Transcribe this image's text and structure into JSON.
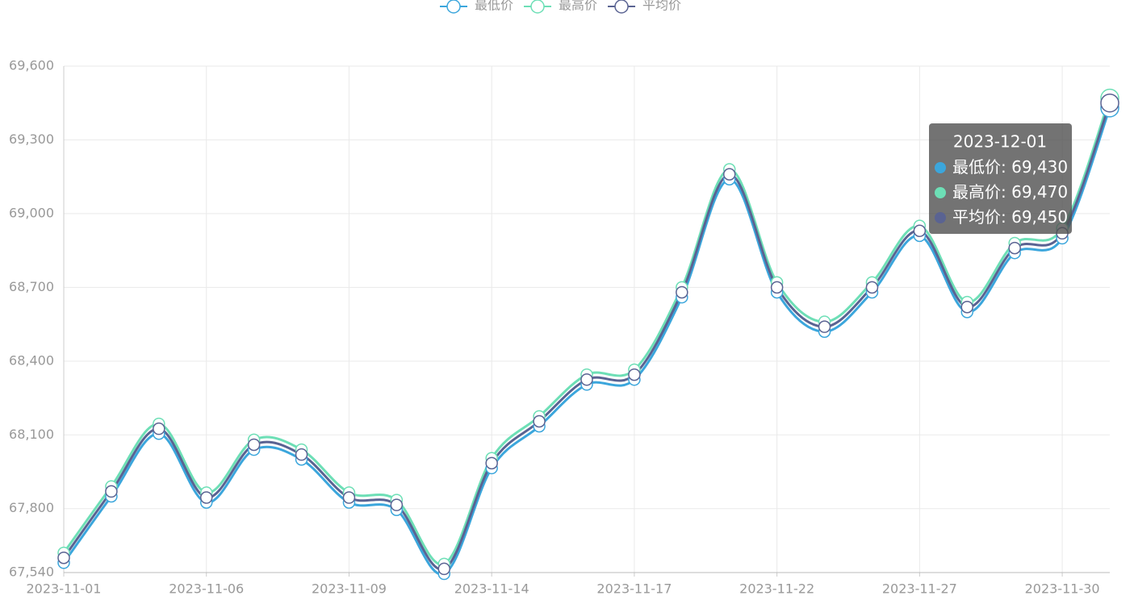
{
  "chart_data": {
    "type": "line",
    "categories": [
      "2023-11-01",
      null,
      null,
      "2023-11-06",
      null,
      null,
      "2023-11-09",
      null,
      null,
      "2023-11-14",
      null,
      null,
      "2023-11-17",
      null,
      null,
      "2023-11-22",
      null,
      null,
      "2023-11-27",
      null,
      null,
      "2023-11-30",
      "2023-12-01"
    ],
    "series": [
      {
        "name": "最低价",
        "color": "#3ba6dc",
        "values": [
          67580,
          67850,
          68105,
          67825,
          68040,
          68000,
          67825,
          67795,
          67535,
          67965,
          68135,
          68305,
          68325,
          68660,
          69140,
          68680,
          68520,
          68680,
          68910,
          68600,
          68840,
          68900,
          69430
        ],
        "value_labels": [
          null,
          null,
          null,
          null,
          null,
          null,
          null,
          null,
          null,
          null,
          null,
          null,
          null,
          null,
          null,
          null,
          null,
          null,
          null,
          null,
          null,
          null,
          "69,430"
        ]
      },
      {
        "name": "最高价",
        "color": "#6ddfb6",
        "values": [
          67620,
          67890,
          68145,
          67865,
          68080,
          68040,
          67865,
          67835,
          67575,
          68005,
          68175,
          68345,
          68365,
          68700,
          69180,
          68720,
          68560,
          68720,
          68950,
          68640,
          68880,
          68940,
          69470
        ],
        "value_labels": [
          null,
          null,
          null,
          null,
          null,
          null,
          null,
          null,
          null,
          null,
          null,
          null,
          null,
          null,
          null,
          null,
          null,
          null,
          null,
          null,
          null,
          null,
          "69,470"
        ]
      },
      {
        "name": "平均价",
        "color": "#5a6392",
        "values": [
          67600,
          67870,
          68125,
          67845,
          68060,
          68020,
          67845,
          67815,
          67555,
          67985,
          68155,
          68325,
          68345,
          68680,
          69160,
          68700,
          68540,
          68700,
          68930,
          68620,
          68860,
          68920,
          69450
        ],
        "value_labels": [
          null,
          null,
          null,
          null,
          null,
          null,
          null,
          null,
          null,
          null,
          null,
          null,
          null,
          null,
          null,
          null,
          null,
          null,
          null,
          null,
          null,
          null,
          "69,450"
        ]
      }
    ],
    "ylim": [
      67540,
      69600
    ],
    "yticks": [
      {
        "value": 67540,
        "label": "67,540"
      },
      {
        "value": 67800,
        "label": "67,800"
      },
      {
        "value": 68100,
        "label": "68,100"
      },
      {
        "value": 68400,
        "label": "68,400"
      },
      {
        "value": 68700,
        "label": "68,700"
      },
      {
        "value": 69000,
        "label": "69,000"
      },
      {
        "value": 69300,
        "label": "69,300"
      },
      {
        "value": 69600,
        "label": "69,600"
      }
    ],
    "grid": true,
    "smooth": true,
    "legend": "top"
  }
}
